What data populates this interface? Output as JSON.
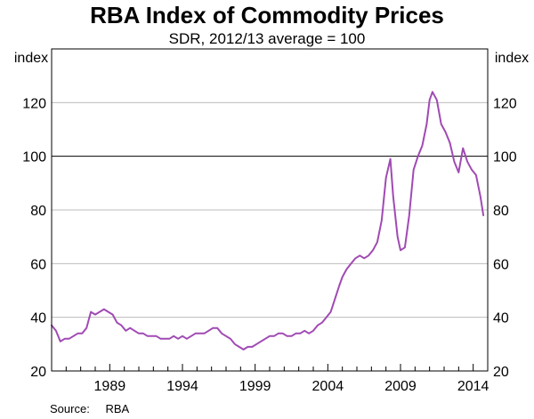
{
  "chart_data": {
    "type": "line",
    "title": "RBA Index of Commodity Prices",
    "subtitle": "SDR, 2012/13 average = 100",
    "ylabel_left": "index",
    "ylabel_right": "index",
    "ylim": [
      20,
      140
    ],
    "yticks": [
      20,
      40,
      60,
      80,
      100,
      120
    ],
    "reference_line": 100,
    "xlim": [
      1985.0,
      2015.0
    ],
    "xticks": [
      1989,
      1994,
      1999,
      2004,
      2009,
      2014
    ],
    "xtick_labels": [
      "1989",
      "1994",
      "1999",
      "2004",
      "2009",
      "2014"
    ],
    "grid": true,
    "series": [
      {
        "name": "RBA Index of Commodity Prices",
        "color": "#a04ab4",
        "x": [
          1985.0,
          1985.3,
          1985.6,
          1985.9,
          1986.2,
          1986.5,
          1986.8,
          1987.1,
          1987.4,
          1987.7,
          1988.0,
          1988.3,
          1988.6,
          1988.9,
          1989.2,
          1989.5,
          1989.8,
          1990.1,
          1990.4,
          1990.7,
          1991.0,
          1991.3,
          1991.6,
          1991.9,
          1992.2,
          1992.5,
          1992.8,
          1993.1,
          1993.4,
          1993.7,
          1994.0,
          1994.3,
          1994.6,
          1994.9,
          1995.2,
          1995.5,
          1995.8,
          1996.1,
          1996.4,
          1996.7,
          1997.0,
          1997.3,
          1997.6,
          1997.9,
          1998.2,
          1998.5,
          1998.8,
          1999.1,
          1999.4,
          1999.7,
          2000.0,
          2000.3,
          2000.6,
          2000.9,
          2001.2,
          2001.5,
          2001.8,
          2002.1,
          2002.4,
          2002.7,
          2003.0,
          2003.3,
          2003.6,
          2003.9,
          2004.2,
          2004.5,
          2004.8,
          2005.0,
          2005.3,
          2005.6,
          2005.9,
          2006.2,
          2006.5,
          2006.8,
          2007.1,
          2007.4,
          2007.7,
          2008.0,
          2008.3,
          2008.5,
          2008.8,
          2009.0,
          2009.3,
          2009.6,
          2009.9,
          2010.2,
          2010.5,
          2010.8,
          2011.0,
          2011.2,
          2011.5,
          2011.8,
          2012.1,
          2012.4,
          2012.7,
          2013.0,
          2013.3,
          2013.6,
          2013.9,
          2014.2,
          2014.5,
          2014.7
        ],
        "values": [
          37,
          35,
          31,
          32,
          32,
          33,
          34,
          34,
          36,
          42,
          41,
          42,
          43,
          42,
          41,
          38,
          37,
          35,
          36,
          35,
          34,
          34,
          33,
          33,
          33,
          32,
          32,
          32,
          33,
          32,
          33,
          32,
          33,
          34,
          34,
          34,
          35,
          36,
          36,
          34,
          33,
          32,
          30,
          29,
          28,
          29,
          29,
          30,
          31,
          32,
          33,
          33,
          34,
          34,
          33,
          33,
          34,
          34,
          35,
          34,
          35,
          37,
          38,
          40,
          42,
          47,
          52,
          55,
          58,
          60,
          62,
          63,
          62,
          63,
          65,
          68,
          76,
          92,
          99,
          85,
          70,
          65,
          66,
          78,
          95,
          100,
          104,
          112,
          121,
          124,
          121,
          112,
          109,
          105,
          98,
          94,
          103,
          98,
          95,
          93,
          85,
          78
        ]
      }
    ],
    "source_label": "Source:",
    "source_value": "RBA"
  }
}
